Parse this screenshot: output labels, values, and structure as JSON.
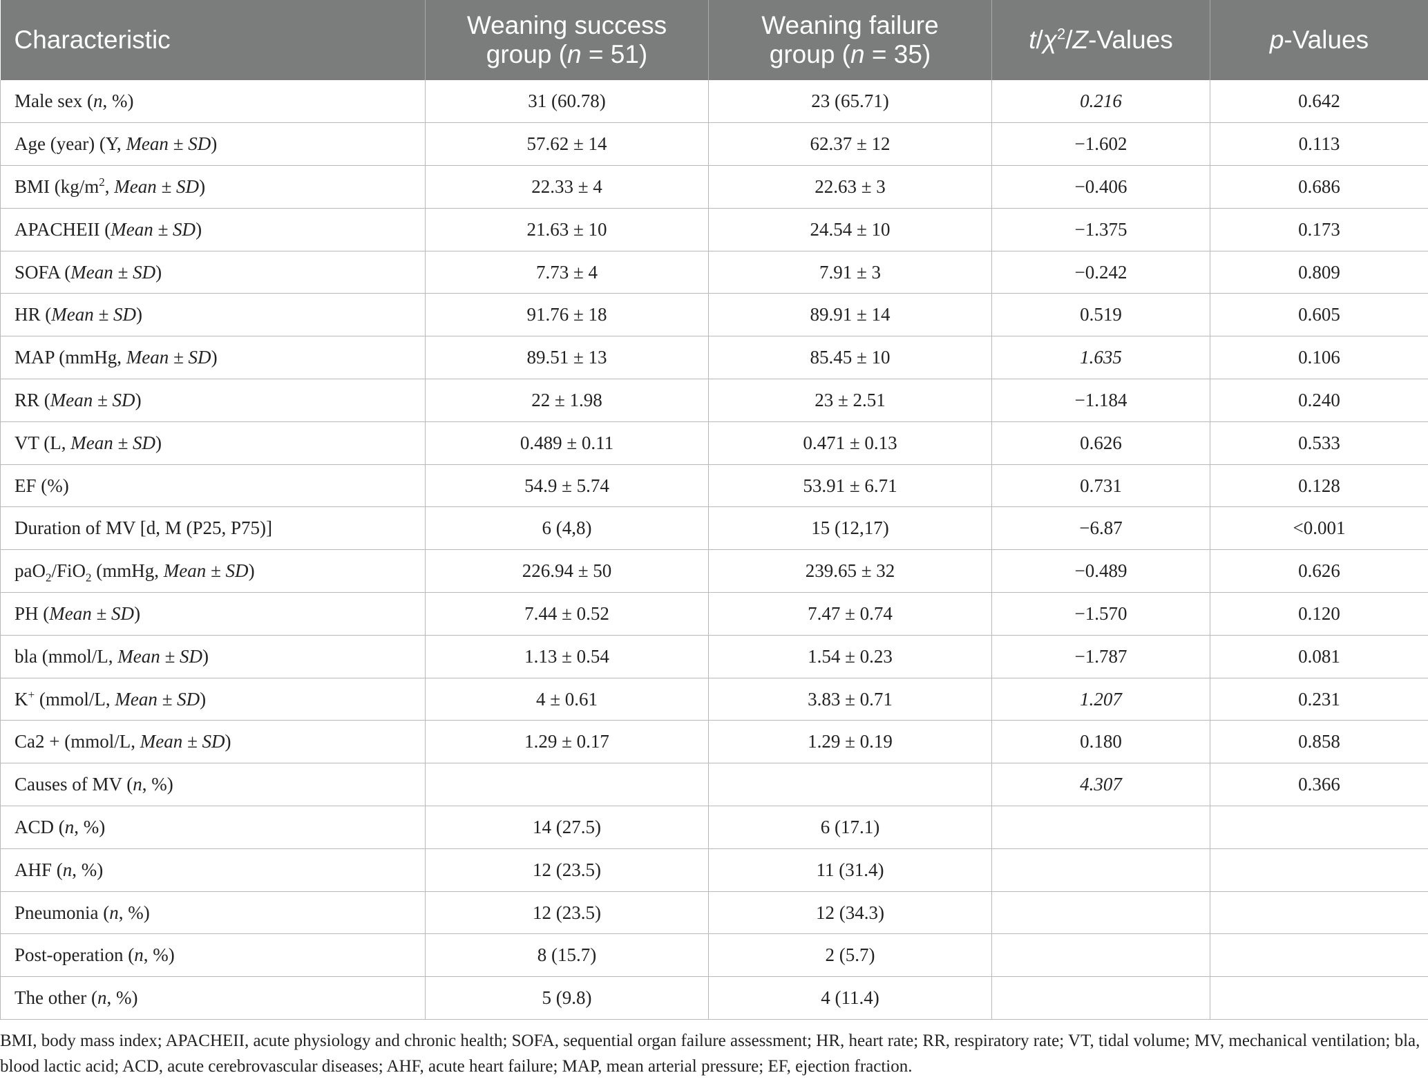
{
  "header": {
    "col1": "Characteristic",
    "col2_line1": "Weaning success",
    "col2_line2_pre": "group (",
    "col2_line2_n": "n",
    "col2_line2_post": " = 51)",
    "col3_line1": "Weaning failure",
    "col3_line2_pre": "group (",
    "col3_line2_n": "n",
    "col3_line2_post": " = 35)",
    "col4_t": "t",
    "col4_slash1": "/",
    "col4_chi": "χ",
    "col4_sup": "2",
    "col4_slash2": "/",
    "col4_z": "Z",
    "col4_rest": "-Values",
    "col5_p": "p",
    "col5_rest": "-Values"
  },
  "rows": [
    {
      "a": "Male sex (",
      "b": "n",
      "c": ", %)",
      "s": "31 (60.78)",
      "f": "23 (65.71)",
      "t": "0.216",
      "p": "0.642"
    },
    {
      "a": "Age (year) (Y, ",
      "b": "Mean ± SD",
      "c": ")",
      "s": "57.62 ± 14",
      "f": "62.37 ± 12",
      "t": "−1.602",
      "p": "0.113"
    },
    {
      "a": "BMI (kg/m",
      "sup": "2",
      "a2": ", ",
      "b": "Mean ± SD",
      "c": ")",
      "s": "22.33 ± 4",
      "f": "22.63 ± 3",
      "t": "−0.406",
      "p": "0.686"
    },
    {
      "a": "APACHEII (",
      "b": "Mean ± SD",
      "c": ")",
      "s": "21.63 ± 10",
      "f": "24.54 ± 10",
      "t": "−1.375",
      "p": "0.173"
    },
    {
      "a": "SOFA (",
      "b": "Mean ± SD",
      "c": ")",
      "s": "7.73 ± 4",
      "f": "7.91 ± 3",
      "t": "−0.242",
      "p": "0.809"
    },
    {
      "a": "HR (",
      "b": "Mean ± SD",
      "c": ")",
      "s": "91.76 ± 18",
      "f": "89.91 ± 14",
      "t": "0.519",
      "p": "0.605"
    },
    {
      "a": "MAP (mmHg, ",
      "b": "Mean ± SD",
      "c": ")",
      "s": "89.51 ± 13",
      "f": "85.45 ± 10",
      "t": "1.635",
      "p": "0.106"
    },
    {
      "a": "RR (",
      "b": "Mean ± SD",
      "c": ")",
      "s": "22 ± 1.98",
      "f": "23 ± 2.51",
      "t": "−1.184",
      "p": "0.240"
    },
    {
      "a": "VT (L, ",
      "b": "Mean ± SD",
      "c": ")",
      "s": "0.489 ± 0.11",
      "f": "0.471 ± 0.13",
      "t": "0.626",
      "p": "0.533"
    },
    {
      "a": "EF (%)",
      "s": "54.9 ± 5.74",
      "f": "53.91 ± 6.71",
      "t": "0.731",
      "p": "0.128"
    },
    {
      "a": "Duration of MV [d, M (P25, P75)]",
      "s": "6 (4,8)",
      "f": "15 (12,17)",
      "t": "−6.87",
      "p": "<0.001"
    },
    {
      "a": "paO",
      "sub1": "2",
      "a2": "/FiO",
      "sub2": "2",
      "a3": " (mmHg, ",
      "b": "Mean ± SD",
      "c": ")",
      "s": "226.94 ± 50",
      "f": "239.65 ± 32",
      "t": "−0.489",
      "p": "0.626"
    },
    {
      "a": "PH (",
      "b": "Mean ± SD",
      "c": ")",
      "s": "7.44 ± 0.52",
      "f": "7.47 ± 0.74",
      "t": "−1.570",
      "p": "0.120"
    },
    {
      "a": "bla (mmol/L, ",
      "b": "Mean ± SD",
      "c": ")",
      "s": "1.13 ± 0.54",
      "f": "1.54 ± 0.23",
      "t": "−1.787",
      "p": "0.081"
    },
    {
      "a": "K",
      "sup": "+",
      "a2": " (mmol/L, ",
      "b": "Mean ± SD",
      "c": ")",
      "s": "4 ± 0.61",
      "f": "3.83 ± 0.71",
      "t": "1.207",
      "p": "0.231"
    },
    {
      "a": "Ca2 + (mmol/L, ",
      "b": "Mean ± SD",
      "c": ")",
      "s": "1.29 ± 0.17",
      "f": "1.29 ± 0.19",
      "t": "0.180",
      "p": "0.858"
    },
    {
      "a": "Causes of MV (",
      "b": "n",
      "c": ", %)",
      "s": "",
      "f": "",
      "t": "4.307",
      "p": "0.366"
    },
    {
      "a": "ACD (",
      "b": "n",
      "c": ", %)",
      "s": "14 (27.5)",
      "f": "6 (17.1)",
      "t": "",
      "p": ""
    },
    {
      "a": "AHF (",
      "b": "n",
      "c": ", %)",
      "s": "12 (23.5)",
      "f": "11 (31.4)",
      "t": "",
      "p": ""
    },
    {
      "a": "Pneumonia (",
      "b": "n",
      "c": ", %)",
      "s": "12 (23.5)",
      "f": "12 (34.3)",
      "t": "",
      "p": ""
    },
    {
      "a": "Post-operation (",
      "b": "n",
      "c": ", %)",
      "s": "8 (15.7)",
      "f": "2 (5.7)",
      "t": "",
      "p": ""
    },
    {
      "a": "The other (",
      "b": "n",
      "c": ", %)",
      "s": "5 (9.8)",
      "f": "4 (11.4)",
      "t": "",
      "p": ""
    }
  ],
  "footnote": "BMI, body mass index; APACHEII, acute physiology and chronic health; SOFA, sequential organ failure assessment; HR, heart rate; RR, respiratory rate; VT, tidal volume; MV, mechanical ventilation; bla, blood lactic acid; ACD, acute cerebrovascular diseases; AHF, acute heart failure; MAP, mean arterial pressure; EF, ejection fraction."
}
